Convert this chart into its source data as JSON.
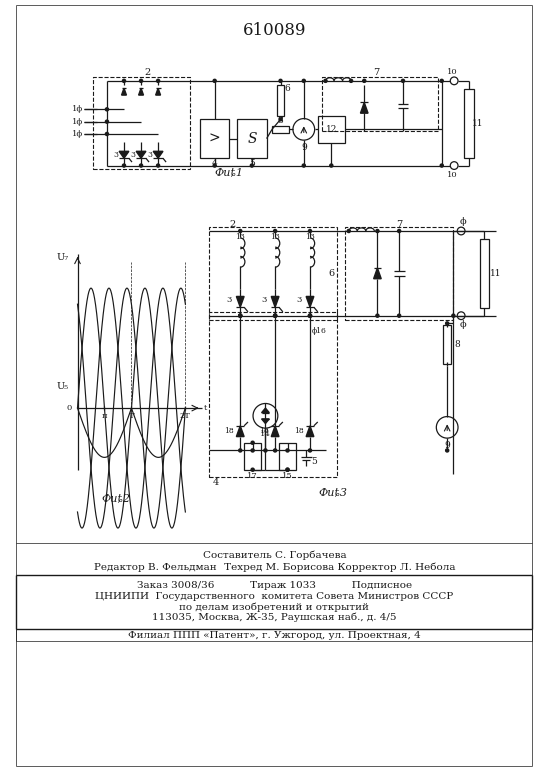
{
  "title_number": "610089",
  "bg_color": "#ffffff",
  "line_color": "#1a1a1a",
  "fig_label1": "Фиȶ1",
  "fig_label2": "Фиȶ2",
  "fig_label3": "Фиȶ3",
  "footer_composer": "Составитель С. Горбачева",
  "footer_editor": "Редактор В. Фельдман   Техред М. Борисова Корректор Л. Небола",
  "footer_order": "Заказ 3008/36           Тираж 1033           Подписное",
  "footer_org": "ЦНИИПИ  Государственного  комитета Совета Министров СССР",
  "footer_dept": "по делам изобретений и открытий",
  "footer_addr": "113035, Москва, Ж-35, Раушская наб., д. 4/5",
  "footer_branch": "Филиал ППП «Патент», г. Ужгород, ул. Проектная, 4"
}
